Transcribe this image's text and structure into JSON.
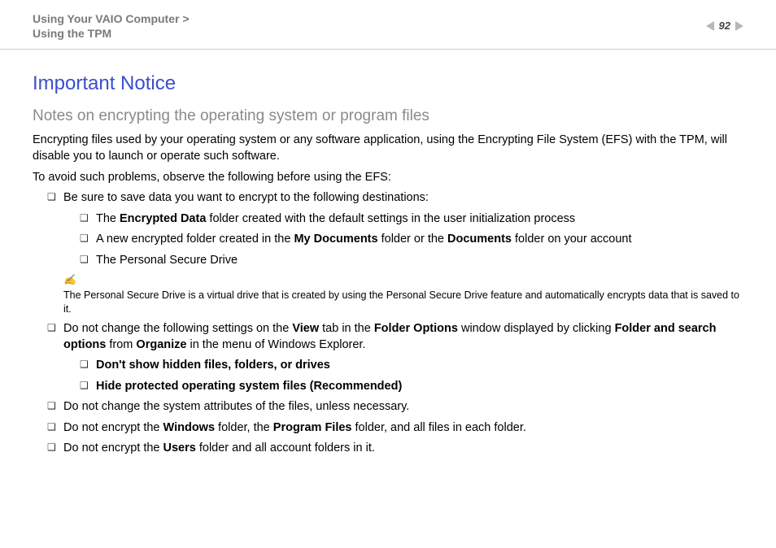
{
  "header": {
    "breadcrumb_line1": "Using Your VAIO Computer >",
    "breadcrumb_line2": "Using the TPM",
    "page_number": "92"
  },
  "main": {
    "title": "Important Notice",
    "subtitle": "Notes on encrypting the operating system or program files",
    "intro1": "Encrypting files used by your operating system or any software application, using the Encrypting File System (EFS) with the TPM, will disable you to launch or operate such software.",
    "intro2": "To avoid such problems, observe the following before using the EFS:",
    "b1": {
      "text": "Be sure to save data you want to encrypt to the following destinations:",
      "sub1_pre": "The ",
      "sub1_b": "Encrypted Data",
      "sub1_post": " folder created with the default settings in the user initialization process",
      "sub2_pre": "A new encrypted folder created in the ",
      "sub2_b1": "My Documents",
      "sub2_mid": " folder or the ",
      "sub2_b2": "Documents",
      "sub2_post": " folder on your account",
      "sub3": "The Personal Secure Drive"
    },
    "note_icon": "✍",
    "note_text": "The Personal Secure Drive is a virtual drive that is created by using the Personal Secure Drive feature and automatically encrypts data that is saved to it.",
    "b2": {
      "pre": "Do not change the following settings on the ",
      "b1": "View",
      "mid1": " tab in the ",
      "b2": "Folder Options",
      "mid2": " window displayed by clicking ",
      "b3": "Folder and search options",
      "mid3": " from ",
      "b4": "Organize",
      "post": " in the menu of Windows Explorer.",
      "sub1": "Don't show hidden files, folders, or drives",
      "sub2": "Hide protected operating system files (Recommended)"
    },
    "b3": "Do not change the system attributes of the files, unless necessary.",
    "b4": {
      "pre": "Do not encrypt the ",
      "b1": "Windows",
      "mid1": " folder, the ",
      "b2": "Program Files",
      "post": " folder, and all files in each folder."
    },
    "b5": {
      "pre": "Do not encrypt the ",
      "b1": "Users",
      "post": " folder and all account folders in it."
    }
  }
}
